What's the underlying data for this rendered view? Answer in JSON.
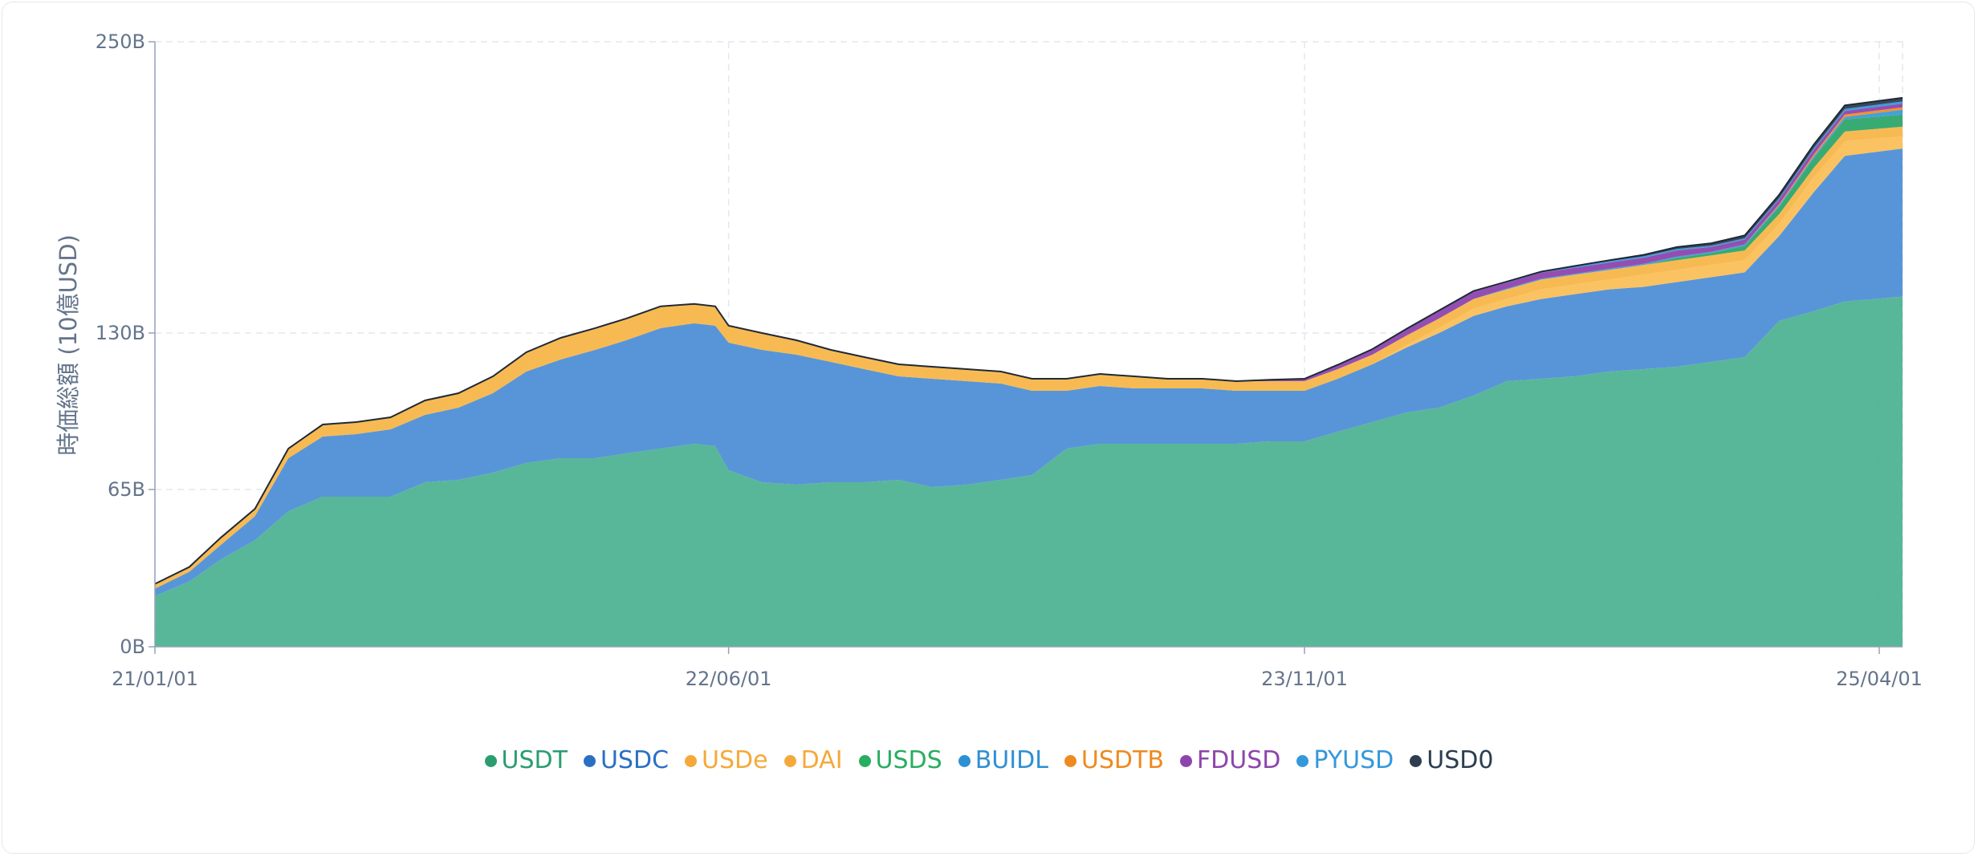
{
  "chart_data": {
    "type": "area",
    "stacked": true,
    "ylabel": "時価総額 (10億USD)",
    "xlabel": "",
    "y_ticks": [
      {
        "value": 0,
        "label": "0B"
      },
      {
        "value": 65,
        "label": "65B"
      },
      {
        "value": 130,
        "label": "130B"
      },
      {
        "value": 250,
        "label": "250B"
      }
    ],
    "x_ticks": [
      {
        "date": "2021-01-01",
        "label": "21/01/01"
      },
      {
        "date": "2022-06-01",
        "label": "22/06/01"
      },
      {
        "date": "2023-11-01",
        "label": "23/11/01"
      },
      {
        "date": "2025-04-01",
        "label": "25/04/01"
      }
    ],
    "x_range": [
      "2021-01-01",
      "2025-04-08"
    ],
    "ylim": [
      0,
      250
    ],
    "grid": true,
    "legend_position": "bottom",
    "x": [
      "2021-01-01",
      "2021-02-01",
      "2021-03-01",
      "2021-04-01",
      "2021-05-01",
      "2021-06-01",
      "2021-07-01",
      "2021-08-01",
      "2021-09-01",
      "2021-10-01",
      "2021-11-01",
      "2021-12-01",
      "2022-01-01",
      "2022-02-01",
      "2022-03-01",
      "2022-04-01",
      "2022-05-01",
      "2022-05-20",
      "2022-06-01",
      "2022-07-01",
      "2022-08-01",
      "2022-09-01",
      "2022-10-01",
      "2022-11-01",
      "2022-12-01",
      "2023-01-01",
      "2023-02-01",
      "2023-03-01",
      "2023-04-01",
      "2023-05-01",
      "2023-06-01",
      "2023-07-01",
      "2023-08-01",
      "2023-09-01",
      "2023-10-01",
      "2023-11-01",
      "2023-12-01",
      "2024-01-01",
      "2024-02-01",
      "2024-03-01",
      "2024-04-01",
      "2024-05-01",
      "2024-06-01",
      "2024-07-01",
      "2024-08-01",
      "2024-09-01",
      "2024-10-01",
      "2024-11-01",
      "2024-12-01",
      "2025-01-01",
      "2025-02-01",
      "2025-03-01",
      "2025-04-08"
    ],
    "series": [
      {
        "name": "USDT",
        "color": "#4fb392",
        "values": [
          21,
          27,
          36,
          44,
          56,
          62,
          62,
          62,
          68,
          69,
          72,
          76,
          78,
          78,
          80,
          82,
          84,
          83,
          73,
          68,
          67,
          68,
          68,
          69,
          66,
          67,
          69,
          71,
          82,
          84,
          84,
          84,
          84,
          84,
          85,
          85,
          89,
          93,
          97,
          99,
          104,
          110,
          111,
          112,
          114,
          115,
          116,
          118,
          120,
          135,
          139,
          143,
          145
        ]
      },
      {
        "name": "USDC",
        "color": "#4f8fd6",
        "values": [
          3,
          4,
          6,
          10,
          22,
          25,
          26,
          28,
          28,
          30,
          33,
          38,
          41,
          45,
          47,
          50,
          50,
          50,
          53,
          55,
          54,
          50,
          47,
          43,
          45,
          43,
          40,
          35,
          24,
          24,
          23,
          23,
          23,
          22,
          21,
          21,
          22,
          24,
          27,
          31,
          33,
          31,
          33,
          34,
          34,
          34,
          35,
          35,
          35,
          35,
          49,
          60,
          61
        ]
      },
      {
        "name": "USDe",
        "color": "#fbbf5a",
        "values": [
          0,
          0,
          0,
          0,
          0,
          0,
          0,
          0,
          0,
          0,
          0,
          0,
          0,
          0,
          0,
          0,
          0,
          0,
          0,
          0,
          0,
          0,
          0,
          0,
          0,
          0,
          0,
          0,
          0,
          0,
          0,
          0,
          0,
          0,
          0,
          0,
          0,
          0,
          1,
          2,
          3,
          3,
          4,
          4,
          4,
          5,
          5,
          5,
          5,
          5,
          6,
          6,
          5
        ]
      },
      {
        "name": "DAI",
        "color": "#f7b64a",
        "values": [
          2,
          2,
          3,
          3,
          4,
          5,
          5,
          5,
          6,
          6,
          7,
          8,
          9,
          9,
          9,
          9,
          8,
          8,
          7,
          7,
          6,
          5,
          5,
          5,
          5,
          5,
          5,
          5,
          5,
          5,
          5,
          4,
          4,
          4,
          4,
          4,
          4,
          4,
          4,
          4,
          4,
          4,
          4,
          4,
          4,
          4,
          4,
          4,
          4,
          4,
          4,
          4,
          4
        ]
      },
      {
        "name": "USDS",
        "color": "#2ea56a",
        "values": [
          0,
          0,
          0,
          0,
          0,
          0,
          0,
          0,
          0,
          0,
          0,
          0,
          0,
          0,
          0,
          0,
          0,
          0,
          0,
          0,
          0,
          0,
          0,
          0,
          0,
          0,
          0,
          0,
          0,
          0,
          0,
          0,
          0,
          0,
          0,
          0,
          0,
          0,
          0,
          0,
          0,
          0,
          0,
          0,
          0,
          0,
          1,
          1,
          2,
          3,
          4,
          5,
          5
        ]
      },
      {
        "name": "BUIDL",
        "color": "#3b9bd8",
        "values": [
          0,
          0,
          0,
          0,
          0,
          0,
          0,
          0,
          0,
          0,
          0,
          0,
          0,
          0,
          0,
          0,
          0,
          0,
          0,
          0,
          0,
          0,
          0,
          0,
          0,
          0,
          0,
          0,
          0,
          0,
          0,
          0,
          0,
          0,
          0,
          0,
          0,
          0,
          0,
          0,
          0,
          0.3,
          0.4,
          0.4,
          0.5,
          0.5,
          0.5,
          0.5,
          0.5,
          0.6,
          0.7,
          1,
          2
        ]
      },
      {
        "name": "USDTB",
        "color": "#f58b1e",
        "values": [
          0,
          0,
          0,
          0,
          0,
          0,
          0,
          0,
          0,
          0,
          0,
          0,
          0,
          0,
          0,
          0,
          0,
          0,
          0,
          0,
          0,
          0,
          0,
          0,
          0,
          0,
          0,
          0,
          0,
          0,
          0,
          0,
          0,
          0,
          0,
          0,
          0,
          0,
          0,
          0,
          0,
          0,
          0,
          0,
          0,
          0,
          0,
          0,
          0,
          0.5,
          0.8,
          1,
          1
        ]
      },
      {
        "name": "FDUSD",
        "color": "#8e44ad",
        "values": [
          0,
          0,
          0,
          0,
          0,
          0,
          0,
          0,
          0,
          0,
          0,
          0,
          0,
          0,
          0,
          0,
          0,
          0,
          0,
          0,
          0,
          0,
          0,
          0,
          0,
          0,
          0,
          0,
          0,
          0,
          0,
          0,
          0,
          0,
          0.5,
          0.8,
          1.5,
          2,
          2.5,
          3,
          3,
          2.5,
          2.5,
          2.5,
          2.5,
          2.5,
          2.5,
          2,
          2,
          2,
          2,
          1.5,
          1.5
        ]
      },
      {
        "name": "PYUSD",
        "color": "#3498db",
        "values": [
          0,
          0,
          0,
          0,
          0,
          0,
          0,
          0,
          0,
          0,
          0,
          0,
          0,
          0,
          0,
          0,
          0,
          0,
          0,
          0,
          0,
          0,
          0,
          0,
          0,
          0,
          0,
          0,
          0,
          0,
          0,
          0,
          0,
          0,
          0.1,
          0.2,
          0.3,
          0.3,
          0.3,
          0.3,
          0.3,
          0.4,
          0.4,
          0.5,
          0.6,
          0.6,
          0.6,
          0.5,
          0.5,
          0.5,
          0.6,
          0.8,
          0.9
        ]
      },
      {
        "name": "USD0",
        "color": "#2c3e50",
        "values": [
          0,
          0,
          0,
          0,
          0,
          0,
          0,
          0,
          0,
          0,
          0,
          0,
          0,
          0,
          0,
          0,
          0,
          0,
          0,
          0,
          0,
          0,
          0,
          0,
          0,
          0,
          0,
          0,
          0,
          0,
          0,
          0,
          0,
          0,
          0,
          0,
          0,
          0,
          0,
          0,
          0,
          0,
          0,
          0.2,
          0.4,
          0.6,
          0.8,
          1,
          1.2,
          1.4,
          1.5,
          1.5,
          1.5
        ]
      }
    ]
  },
  "legend": {
    "items": [
      {
        "label": "USDT",
        "color": "#2a9d6f"
      },
      {
        "label": "USDC",
        "color": "#2b6fc4"
      },
      {
        "label": "USDe",
        "color": "#f5a93a"
      },
      {
        "label": "DAI",
        "color": "#f5a93a"
      },
      {
        "label": "USDS",
        "color": "#27ae60"
      },
      {
        "label": "BUIDL",
        "color": "#2f8fd3"
      },
      {
        "label": "USDTB",
        "color": "#ee8a1f"
      },
      {
        "label": "FDUSD",
        "color": "#8e44ad"
      },
      {
        "label": "PYUSD",
        "color": "#3498db"
      },
      {
        "label": "USD0",
        "color": "#2c3e50"
      }
    ]
  }
}
